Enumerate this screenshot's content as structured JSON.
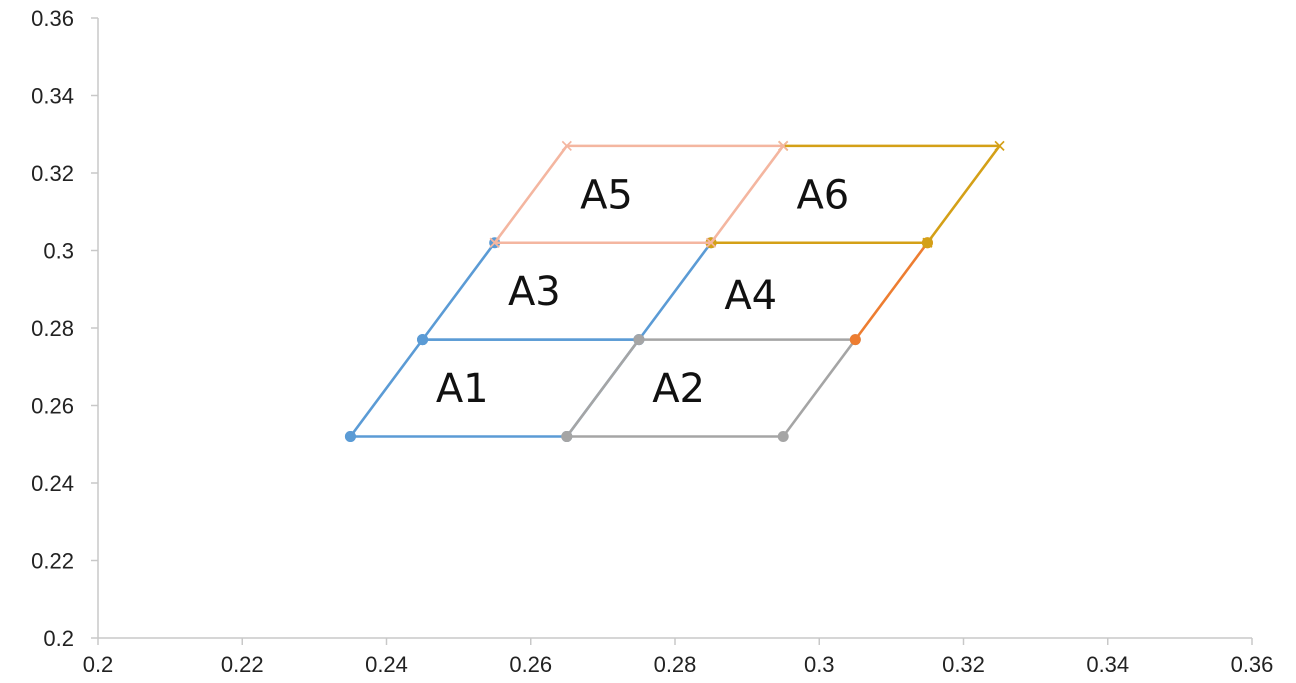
{
  "chart_data": {
    "type": "scatter",
    "title": "",
    "xlabel": "",
    "ylabel": "",
    "xlim": [
      0.2,
      0.36
    ],
    "ylim": [
      0.2,
      0.36
    ],
    "grid": false,
    "x_ticks": [
      "0.2",
      "0.22",
      "0.24",
      "0.26",
      "0.28",
      "0.3",
      "0.32",
      "0.34",
      "0.36"
    ],
    "y_ticks": [
      "0.2",
      "0.22",
      "0.24",
      "0.26",
      "0.28",
      "0.3",
      "0.32",
      "0.34",
      "0.36"
    ],
    "series": [
      {
        "color": "#5b9bd5",
        "marker": "circle",
        "points": [
          [
            0.235,
            0.252
          ],
          [
            0.265,
            0.252
          ],
          [
            0.275,
            0.277
          ],
          [
            0.245,
            0.277
          ],
          [
            0.235,
            0.252
          ]
        ]
      },
      {
        "color": "#5b9bd5",
        "marker": "circle",
        "points": [
          [
            0.245,
            0.277
          ],
          [
            0.275,
            0.277
          ],
          [
            0.285,
            0.302
          ],
          [
            0.255,
            0.302
          ],
          [
            0.245,
            0.277
          ]
        ]
      },
      {
        "color": "#a5a5a5",
        "marker": "circle",
        "points": [
          [
            0.265,
            0.252
          ],
          [
            0.295,
            0.252
          ],
          [
            0.305,
            0.277
          ],
          [
            0.275,
            0.277
          ],
          [
            0.265,
            0.252
          ]
        ]
      },
      {
        "color": "#ed7d31",
        "marker": "circle",
        "points": [
          [
            0.305,
            0.277
          ],
          [
            0.315,
            0.302
          ]
        ]
      },
      {
        "color": "#d4a017",
        "marker": "circle",
        "points": [
          [
            0.285,
            0.302
          ],
          [
            0.315,
            0.302
          ]
        ]
      },
      {
        "color": "#d4a017",
        "marker": "x",
        "points": [
          [
            0.315,
            0.302
          ],
          [
            0.325,
            0.327
          ],
          [
            0.295,
            0.327
          ]
        ]
      },
      {
        "color": "#f4b6a0",
        "marker": "x",
        "points": [
          [
            0.255,
            0.302
          ],
          [
            0.285,
            0.302
          ],
          [
            0.295,
            0.327
          ],
          [
            0.265,
            0.327
          ],
          [
            0.255,
            0.302
          ]
        ]
      }
    ],
    "annotations": [
      {
        "text": "A1",
        "x": 0.2505,
        "y": 0.2645
      },
      {
        "text": "A2",
        "x": 0.2805,
        "y": 0.2645
      },
      {
        "text": "A3",
        "x": 0.2605,
        "y": 0.2895
      },
      {
        "text": "A4",
        "x": 0.2905,
        "y": 0.2885
      },
      {
        "text": "A5",
        "x": 0.2705,
        "y": 0.3145
      },
      {
        "text": "A6",
        "x": 0.3005,
        "y": 0.3145
      }
    ]
  }
}
